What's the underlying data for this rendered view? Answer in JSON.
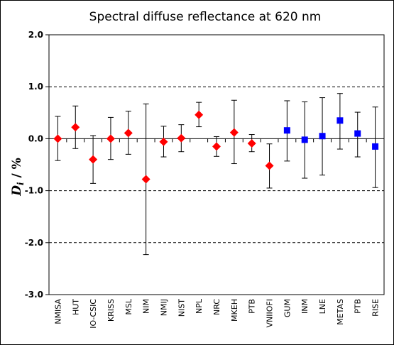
{
  "chart_data": {
    "type": "scatter",
    "title": "Spectral diffuse reflectance at 620 nm",
    "ylabel_main": "D",
    "ylabel_sub": "i",
    "ylabel_rest": " / %",
    "ylim": [
      -3.0,
      2.0
    ],
    "yticks": [
      {
        "value": 2.0,
        "label": "2.0"
      },
      {
        "value": 1.0,
        "label": "1.0"
      },
      {
        "value": 0.0,
        "label": "0.0"
      },
      {
        "value": -1.0,
        "label": "-1.0"
      },
      {
        "value": -2.0,
        "label": "-2.0"
      },
      {
        "value": -3.0,
        "label": "-3.0"
      }
    ],
    "dashed_gridlines": [
      1.0,
      -1.0,
      -2.0
    ],
    "grid": false,
    "legend": "none",
    "categories": [
      "NMISA",
      "HUT",
      "IO-CSIC",
      "KRISS",
      "MSL",
      "NIM",
      "NMIJ",
      "NIST",
      "NPL",
      "NRC",
      "MKEH",
      "PTB",
      "VNIIOFI",
      "GUM",
      "INM",
      "LNE",
      "METAS",
      "PTB",
      "RISE"
    ],
    "series": [
      {
        "marker": "diamond",
        "color": "#ff0000",
        "points": [
          {
            "category": "NMISA",
            "y": 0.0,
            "lo": -0.42,
            "hi": 0.43
          },
          {
            "category": "HUT",
            "y": 0.22,
            "lo": -0.19,
            "hi": 0.63
          },
          {
            "category": "IO-CSIC",
            "y": -0.4,
            "lo": -0.86,
            "hi": 0.06
          },
          {
            "category": "KRISS",
            "y": 0.0,
            "lo": -0.4,
            "hi": 0.41
          },
          {
            "category": "MSL",
            "y": 0.11,
            "lo": -0.3,
            "hi": 0.53
          },
          {
            "category": "NIM",
            "y": -0.78,
            "lo": -2.23,
            "hi": 0.67
          },
          {
            "category": "NMIJ",
            "y": -0.06,
            "lo": -0.35,
            "hi": 0.24
          },
          {
            "category": "NIST",
            "y": 0.01,
            "lo": -0.25,
            "hi": 0.27
          },
          {
            "category": "NPL",
            "y": 0.46,
            "lo": 0.23,
            "hi": 0.7
          },
          {
            "category": "NRC",
            "y": -0.15,
            "lo": -0.34,
            "hi": 0.04
          },
          {
            "category": "MKEH",
            "y": 0.12,
            "lo": -0.48,
            "hi": 0.74
          },
          {
            "category": "PTB",
            "y": -0.09,
            "lo": -0.25,
            "hi": 0.08
          },
          {
            "category": "VNIIOFI",
            "y": -0.52,
            "lo": -0.95,
            "hi": -0.1
          }
        ]
      },
      {
        "marker": "square",
        "color": "#0000ff",
        "points": [
          {
            "category": "GUM",
            "y": 0.16,
            "lo": -0.43,
            "hi": 0.73
          },
          {
            "category": "INM",
            "y": -0.02,
            "lo": -0.76,
            "hi": 0.71
          },
          {
            "category": "LNE",
            "y": 0.05,
            "lo": -0.7,
            "hi": 0.79
          },
          {
            "category": "METAS",
            "y": 0.35,
            "lo": -0.2,
            "hi": 0.87
          },
          {
            "category": "PTB",
            "y": 0.1,
            "lo": -0.35,
            "hi": 0.51
          },
          {
            "category": "RISE",
            "y": -0.15,
            "lo": -0.94,
            "hi": 0.61
          }
        ]
      }
    ]
  }
}
